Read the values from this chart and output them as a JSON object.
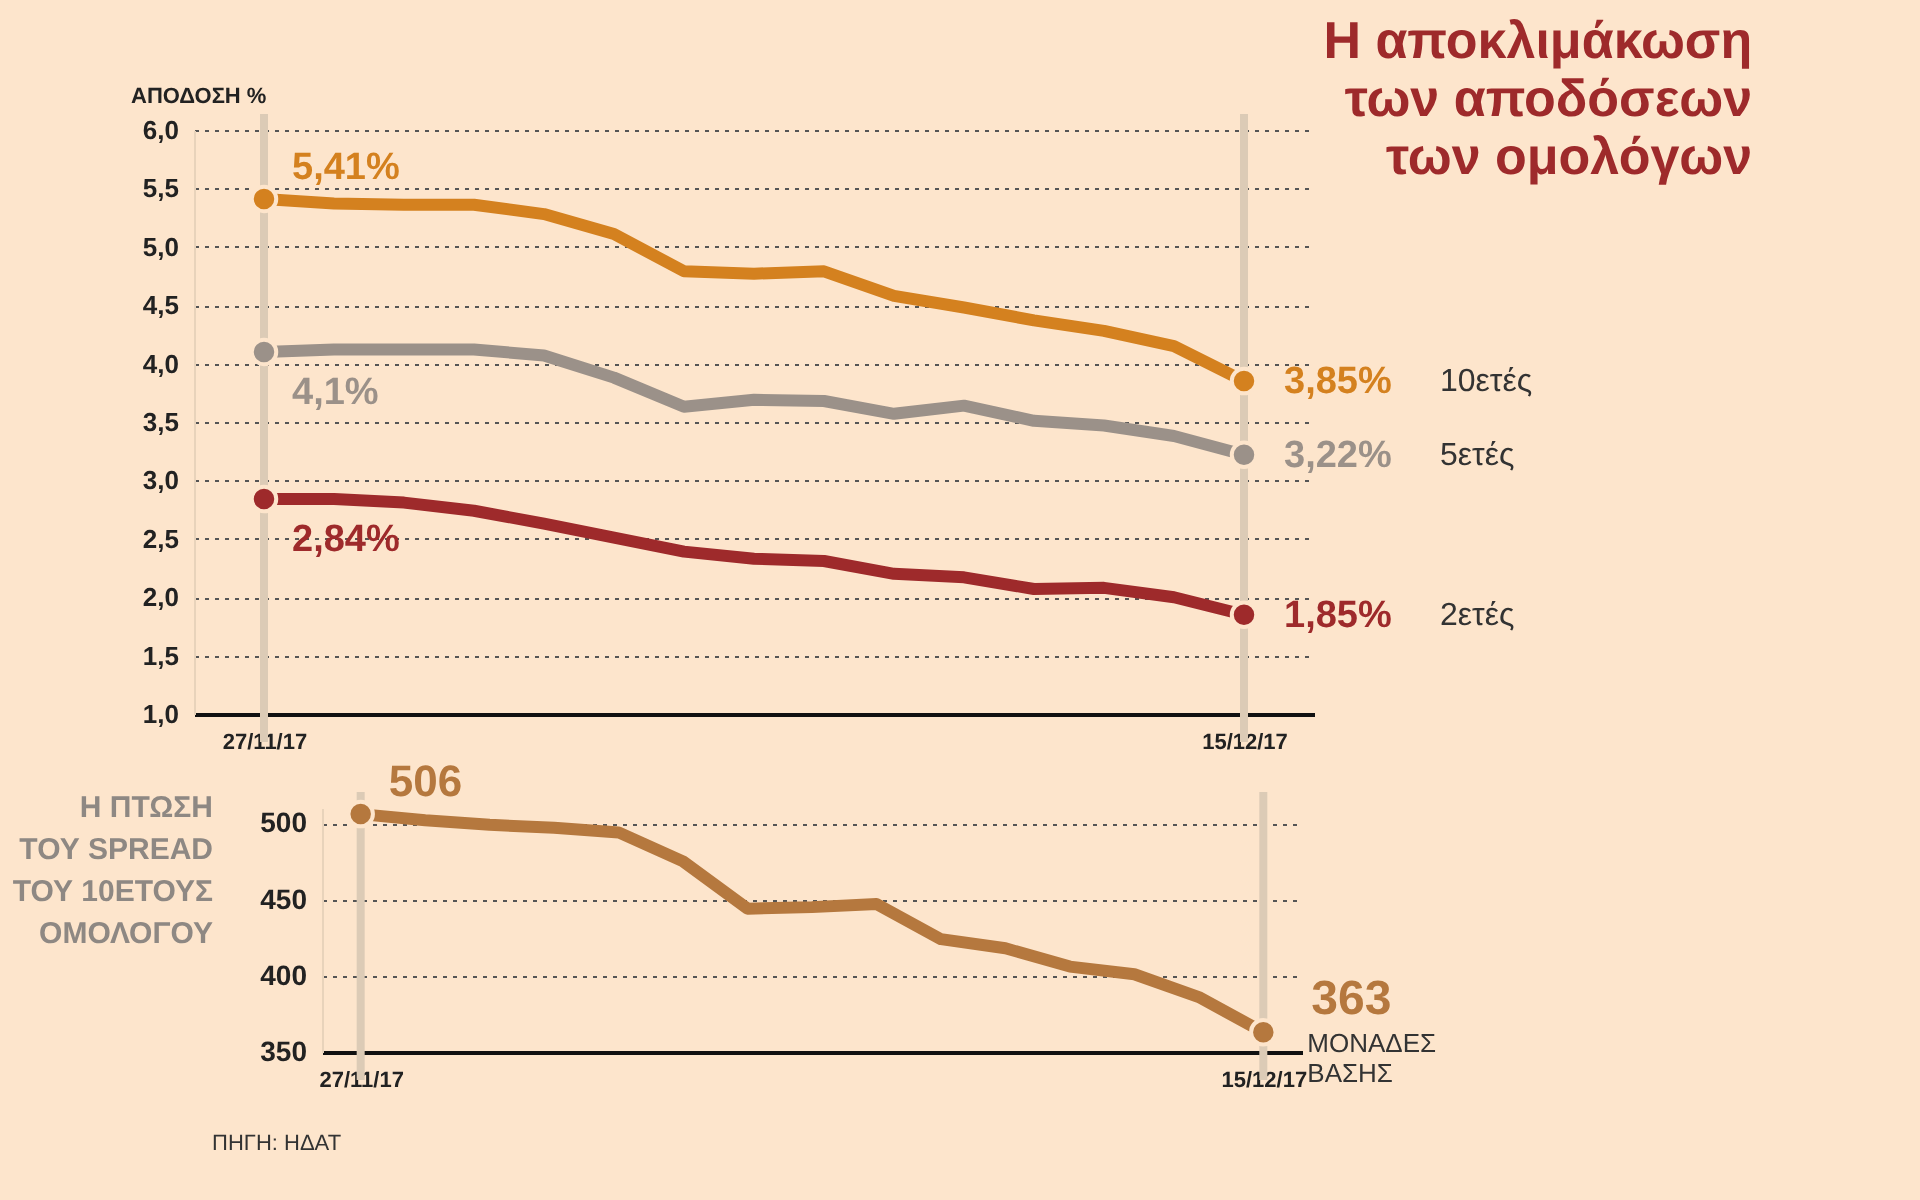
{
  "chart_data": [
    {
      "type": "line",
      "title": "Η αποκλιμάκωση των αποδόσεων των ομολόγων",
      "ylabel": "ΑΠΟΔΟΣΗ %",
      "categories": [
        "27/11/17",
        null,
        null,
        null,
        null,
        null,
        null,
        null,
        null,
        null,
        null,
        null,
        null,
        null,
        "15/12/17"
      ],
      "ylim": [
        1,
        6
      ],
      "yticks": [
        {
          "value": 1,
          "label": "1,0"
        },
        {
          "value": 1.5,
          "label": "1,5"
        },
        {
          "value": 2,
          "label": "2,0"
        },
        {
          "value": 2.5,
          "label": "2,5"
        },
        {
          "value": 3,
          "label": "3,0"
        },
        {
          "value": 3.5,
          "label": "3,5"
        },
        {
          "value": 4,
          "label": "4,0"
        },
        {
          "value": 4.5,
          "label": "4,5"
        },
        {
          "value": 5,
          "label": "5,0"
        },
        {
          "value": 5.5,
          "label": "5,5"
        },
        {
          "value": 6,
          "label": "6,0"
        }
      ],
      "grid": "y",
      "ref_lines": [
        {
          "axis": "x",
          "value": "27/11/17",
          "color": "#dccbb6"
        },
        {
          "axis": "x",
          "value": "15/12/17",
          "color": "#dccbb6"
        }
      ],
      "series": [
        {
          "name": "10ετές",
          "color": "#d4811f",
          "values": [
            5.41,
            5.37,
            5.36,
            5.36,
            5.28,
            5.11,
            4.79,
            4.77,
            4.79,
            4.58,
            4.48,
            4.37,
            4.28,
            4.15,
            3.85
          ],
          "value_labels": [
            "5,41%",
            null,
            null,
            null,
            null,
            null,
            null,
            null,
            null,
            null,
            null,
            null,
            null,
            null,
            "3,85%"
          ]
        },
        {
          "name": "5ετές",
          "color": "#9b9189",
          "values": [
            4.1,
            4.12,
            4.12,
            4.12,
            4.07,
            3.88,
            3.63,
            3.69,
            3.68,
            3.57,
            3.64,
            3.51,
            3.47,
            3.38,
            3.22
          ],
          "value_labels": [
            "4,1%",
            null,
            null,
            null,
            null,
            null,
            null,
            null,
            null,
            null,
            null,
            null,
            null,
            null,
            "3,22%"
          ]
        },
        {
          "name": "2ετές",
          "color": "#9e2a2b",
          "values": [
            2.84,
            2.84,
            2.81,
            2.74,
            2.63,
            2.51,
            2.39,
            2.33,
            2.31,
            2.2,
            2.17,
            2.07,
            2.08,
            2.0,
            1.85
          ],
          "value_labels": [
            "2,84%",
            null,
            null,
            null,
            null,
            null,
            null,
            null,
            null,
            null,
            null,
            null,
            null,
            null,
            "1,85%"
          ]
        }
      ]
    },
    {
      "type": "line",
      "ylabel": "Η ΠΤΩΣΗ ΤΟΥ SPREAD ΤΟΥ 10ΕΤΟΥΣ ΟΜΟΛΟΓΟΥ",
      "categories": [
        "27/11/17",
        null,
        null,
        null,
        null,
        null,
        null,
        null,
        null,
        null,
        null,
        null,
        null,
        null,
        "15/12/17"
      ],
      "ylim": [
        350,
        510
      ],
      "yticks": [
        350,
        400,
        450,
        500
      ],
      "grid": "y",
      "ref_lines": [
        {
          "axis": "x",
          "value": "27/11/17",
          "color": "#dccbb6"
        },
        {
          "axis": "x",
          "value": "15/12/17",
          "color": "#dccbb6"
        }
      ],
      "series": [
        {
          "color": "#b5783e",
          "values": [
            506,
            502,
            499,
            497,
            494,
            475,
            444,
            445,
            447,
            424,
            418,
            406,
            401,
            386,
            363
          ],
          "value_labels": [
            "506",
            null,
            null,
            null,
            null,
            null,
            null,
            null,
            null,
            null,
            null,
            null,
            null,
            null,
            "363"
          ]
        }
      ],
      "annotations": [
        {
          "text": "ΜΟΝΑΔΕΣ ΒΑΣΗΣ",
          "x": "15/12/17",
          "y": 363
        },
        "ΠΗΓΗ: ΗΔΑΤ"
      ]
    }
  ]
}
